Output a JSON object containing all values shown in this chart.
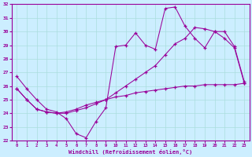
{
  "xlabel": "Windchill (Refroidissement éolien,°C)",
  "xlim": [
    -0.5,
    23.5
  ],
  "ylim": [
    22,
    32
  ],
  "yticks": [
    22,
    23,
    24,
    25,
    26,
    27,
    28,
    29,
    30,
    31,
    32
  ],
  "xticks": [
    0,
    1,
    2,
    3,
    4,
    5,
    6,
    7,
    8,
    9,
    10,
    11,
    12,
    13,
    14,
    15,
    16,
    17,
    18,
    19,
    20,
    21,
    22,
    23
  ],
  "line_color": "#990099",
  "bg_color": "#cceeff",
  "grid_color": "#aadddd",
  "series1_x": [
    0,
    1,
    2,
    3,
    4,
    5,
    6,
    7,
    8,
    9,
    10,
    11,
    12,
    13,
    14,
    15,
    16,
    17,
    18,
    19,
    20,
    21,
    22,
    23
  ],
  "series1_y": [
    26.7,
    25.8,
    25.0,
    24.3,
    24.1,
    23.6,
    22.5,
    22.2,
    23.4,
    24.4,
    28.9,
    29.0,
    29.9,
    29.0,
    28.7,
    31.7,
    31.8,
    30.4,
    29.5,
    28.8,
    30.0,
    30.0,
    28.9,
    26.3
  ],
  "series2_x": [
    0,
    1,
    2,
    3,
    4,
    5,
    6,
    7,
    8,
    9,
    10,
    11,
    12,
    13,
    14,
    15,
    16,
    17,
    18,
    19,
    20,
    21,
    22,
    23
  ],
  "series2_y": [
    25.8,
    25.0,
    24.3,
    24.1,
    24.0,
    24.0,
    24.2,
    24.4,
    24.7,
    25.0,
    25.5,
    26.0,
    26.5,
    27.0,
    27.5,
    28.3,
    29.1,
    29.5,
    30.3,
    30.2,
    30.0,
    29.5,
    28.8,
    26.2
  ],
  "series3_x": [
    0,
    1,
    2,
    3,
    4,
    5,
    6,
    7,
    8,
    9,
    10,
    11,
    12,
    13,
    14,
    15,
    16,
    17,
    18,
    19,
    20,
    21,
    22,
    23
  ],
  "series3_y": [
    25.8,
    25.0,
    24.3,
    24.1,
    24.0,
    24.1,
    24.3,
    24.6,
    24.8,
    25.0,
    25.2,
    25.3,
    25.5,
    25.6,
    25.7,
    25.8,
    25.9,
    26.0,
    26.0,
    26.1,
    26.1,
    26.1,
    26.1,
    26.2
  ]
}
